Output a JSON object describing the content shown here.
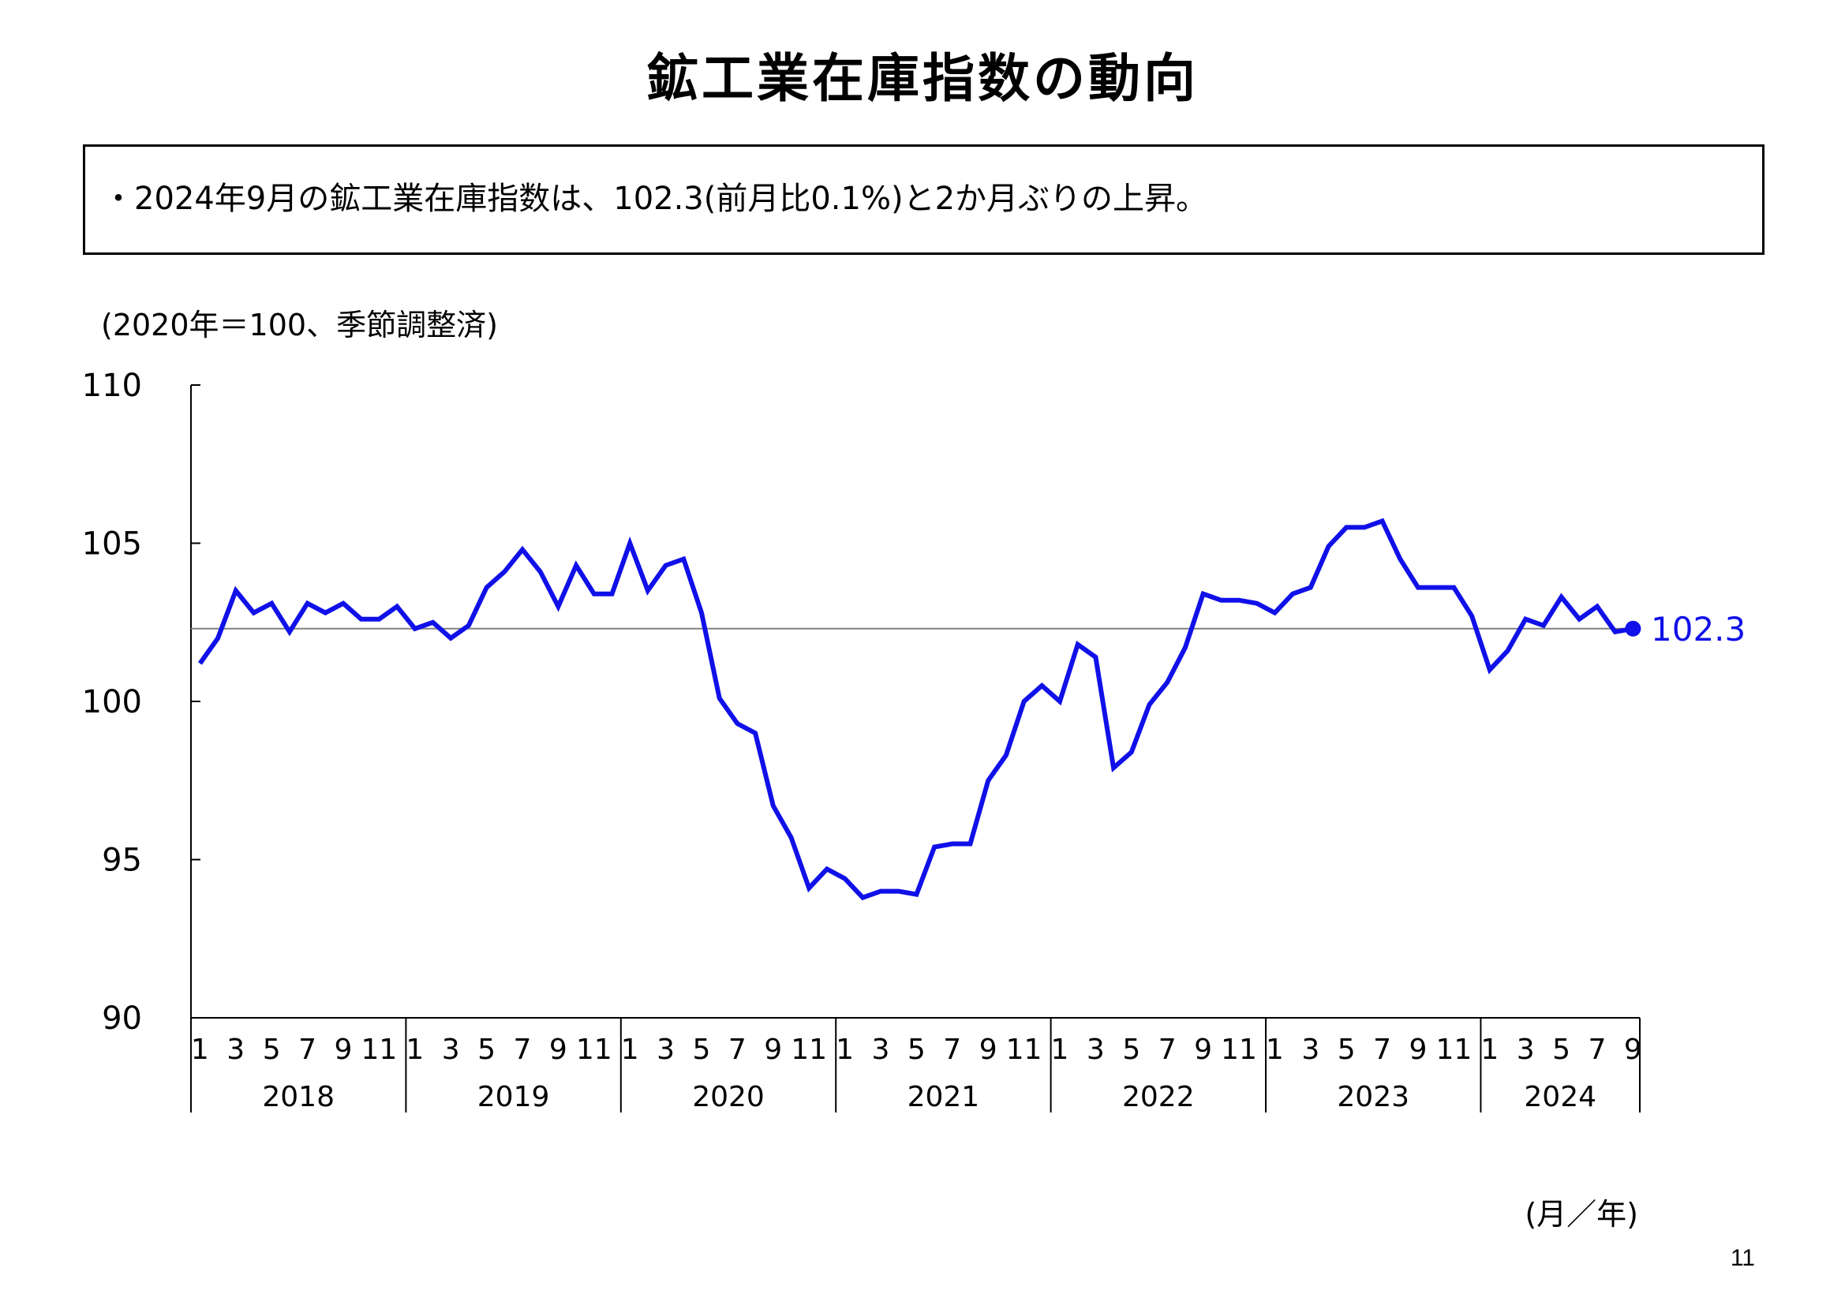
{
  "page": {
    "title": "鉱工業在庫指数の動向",
    "summary": "・2024年9月の鉱工業在庫指数は、102.3(前月比0.1%)と2か月ぶりの上昇。",
    "page_number": "11"
  },
  "chart_data": {
    "type": "line",
    "title": "",
    "unit_note": "(2020年＝100、季節調整済)",
    "xlabel": "(月／年)",
    "ylabel": "",
    "ylim": [
      90,
      110
    ],
    "yticks": [
      "110",
      "105",
      "100",
      "95",
      "90"
    ],
    "years": [
      "2018",
      "2019",
      "2020",
      "2021",
      "2022",
      "2023",
      "2024"
    ],
    "month_ticks": [
      "1",
      "3",
      "5",
      "7",
      "9",
      "11"
    ],
    "month_ticks_last_year": [
      "1",
      "3",
      "5",
      "7",
      "9"
    ],
    "reference_line": 102.3,
    "end_label": "102.3",
    "grid": false,
    "colors": {
      "line": "#1010e8",
      "reference": "#808080",
      "axis": "#000000"
    },
    "series": [
      {
        "values": [
          101.2,
          102.0,
          103.5,
          102.8,
          103.1,
          102.2,
          103.1,
          102.8,
          103.1,
          102.6,
          102.6,
          103.0,
          102.3,
          102.5,
          102.0,
          102.4,
          103.6,
          104.1,
          104.8,
          104.1,
          103.0,
          104.3,
          103.4,
          103.4,
          105.0,
          103.5,
          104.3,
          104.5,
          102.8,
          100.1,
          99.3,
          99.0,
          96.7,
          95.7,
          94.1,
          94.7,
          94.4,
          93.8,
          94.0,
          94.0,
          93.9,
          95.4,
          95.5,
          95.5,
          97.5,
          98.3,
          100.0,
          100.5,
          100.0,
          101.8,
          101.4,
          97.9,
          98.4,
          99.9,
          100.6,
          101.7,
          103.4,
          103.2,
          103.2,
          103.1,
          102.8,
          103.4,
          103.6,
          104.9,
          105.5,
          105.5,
          105.7,
          104.5,
          103.6,
          103.6,
          103.6,
          102.7,
          101.0,
          101.6,
          102.6,
          102.4,
          103.3,
          102.6,
          103.0,
          102.2,
          102.3
        ]
      }
    ]
  }
}
